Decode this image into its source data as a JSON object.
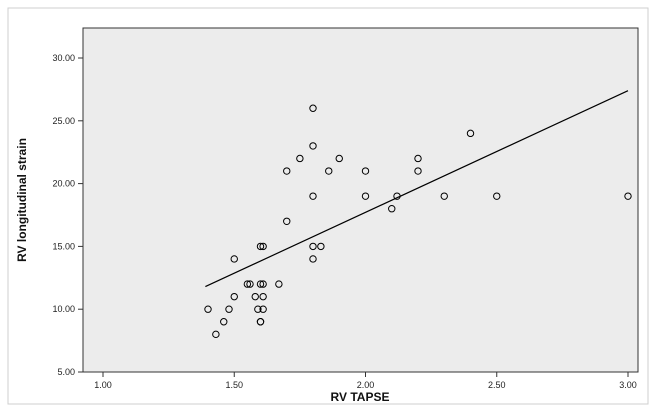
{
  "chart_data": {
    "type": "scatter",
    "title": "",
    "xlabel": "RV TAPSE",
    "ylabel": "RV longitudinal strain",
    "xlim": [
      1.0,
      3.0
    ],
    "ylim": [
      5.0,
      30.0
    ],
    "xticks": [
      "1.00",
      "1.50",
      "2.00",
      "2.50",
      "3.00"
    ],
    "yticks": [
      "5.00",
      "10.00",
      "15.00",
      "20.00",
      "25.00",
      "30.00"
    ],
    "grid": false,
    "legend": "none",
    "marker": "open-circle",
    "series": [
      {
        "points": [
          [
            1.4,
            10
          ],
          [
            1.43,
            8
          ],
          [
            1.46,
            9
          ],
          [
            1.48,
            10
          ],
          [
            1.5,
            11
          ],
          [
            1.5,
            14
          ],
          [
            1.55,
            12
          ],
          [
            1.56,
            12
          ],
          [
            1.58,
            11
          ],
          [
            1.59,
            10
          ],
          [
            1.6,
            9
          ],
          [
            1.6,
            9
          ],
          [
            1.61,
            10
          ],
          [
            1.61,
            11
          ],
          [
            1.6,
            12
          ],
          [
            1.61,
            12
          ],
          [
            1.6,
            15
          ],
          [
            1.61,
            15
          ],
          [
            1.67,
            12
          ],
          [
            1.7,
            17
          ],
          [
            1.7,
            21
          ],
          [
            1.75,
            22
          ],
          [
            1.8,
            14
          ],
          [
            1.8,
            15
          ],
          [
            1.8,
            19
          ],
          [
            1.8,
            23
          ],
          [
            1.8,
            26
          ],
          [
            1.83,
            15
          ],
          [
            1.86,
            21
          ],
          [
            1.9,
            22
          ],
          [
            2.0,
            19
          ],
          [
            2.0,
            21
          ],
          [
            2.1,
            18
          ],
          [
            2.12,
            19
          ],
          [
            2.2,
            21
          ],
          [
            2.2,
            22
          ],
          [
            2.3,
            19
          ],
          [
            2.4,
            24
          ],
          [
            2.5,
            19
          ],
          [
            3.0,
            19
          ]
        ]
      }
    ],
    "fit_line": {
      "x": [
        1.39,
        3.0
      ],
      "y": [
        11.8,
        27.4
      ]
    },
    "colors": {
      "plot_background": "#ececec",
      "marker": "#000000",
      "line": "#000000",
      "page_background": "#ffffff"
    }
  }
}
